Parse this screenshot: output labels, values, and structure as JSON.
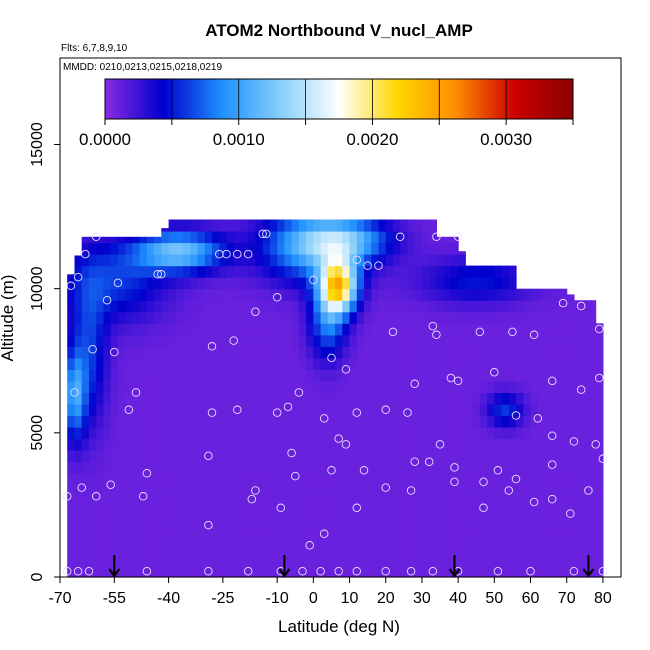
{
  "chart_data": {
    "type": "heatmap",
    "title": "ATOM2 Northbound V_nucl_AMP",
    "flights_label": "Flts: 6,7,8,9,10",
    "dates_label": "MMDD: 0210,0213,0215,0218,0219",
    "xlabel": "Latitude (deg N)",
    "ylabel": "Altitude (m)",
    "xlim": [
      -70,
      85
    ],
    "ylim": [
      0,
      18000
    ],
    "x_ticks": [
      -70,
      -55,
      -40,
      -25,
      -10,
      0,
      10,
      20,
      30,
      40,
      50,
      60,
      70,
      80
    ],
    "x_tick_labels": [
      "-70",
      "-55",
      "-40",
      "-25",
      "-10",
      "0",
      "10",
      "20",
      "30",
      "40",
      "50",
      "60",
      "70",
      "80"
    ],
    "y_ticks": [
      0,
      5000,
      10000,
      15000
    ],
    "y_tick_labels": [
      "0",
      "5000",
      "10000",
      "15000"
    ],
    "colorbar": {
      "range": [
        0,
        0.0035
      ],
      "ticks": [
        0.0,
        0.001,
        0.002,
        0.003
      ],
      "tick_labels": [
        "0.0000",
        "0.0010",
        "0.0020",
        "0.0030"
      ],
      "colors": [
        "#8a2be2",
        "#0000cd",
        "#1e90ff",
        "#87cefa",
        "#ffffff",
        "#ffd700",
        "#ff8c00",
        "#cc0000",
        "#8b0000"
      ]
    },
    "profile_arrows_lat": [
      -55,
      -8,
      39,
      76
    ],
    "grid_lat_range": [
      -68,
      80
    ],
    "hotspots": [
      {
        "lat": 0,
        "alt": 11500,
        "dlat": 14,
        "dalt": 1200,
        "value": 0.001
      },
      {
        "lat": -37,
        "alt": 11300,
        "dlat": 12,
        "dalt": 700,
        "value": 0.0011
      },
      {
        "lat": 7,
        "alt": 10100,
        "dlat": 5,
        "dalt": 900,
        "value": 0.002
      },
      {
        "lat": 4,
        "alt": 8900,
        "dlat": 5,
        "dalt": 1300,
        "value": 0.0007
      },
      {
        "lat": -55,
        "alt": 10300,
        "dlat": 14,
        "dalt": 1400,
        "value": 0.0005
      },
      {
        "lat": 10,
        "alt": 11700,
        "dlat": 12,
        "dalt": 700,
        "value": 0.0007
      },
      {
        "lat": -66,
        "alt": 6300,
        "dlat": 3,
        "dalt": 1500,
        "value": 0.0008
      },
      {
        "lat": -62,
        "alt": 7800,
        "dlat": 5,
        "dalt": 2500,
        "value": 0.0005
      },
      {
        "lat": 53,
        "alt": 5800,
        "dlat": 5,
        "dalt": 600,
        "value": 0.0005
      },
      {
        "lat": 45,
        "alt": 10300,
        "dlat": 15,
        "dalt": 800,
        "value": 0.0004
      }
    ],
    "observations": [
      {
        "lat": -67,
        "alt": 10100
      },
      {
        "lat": -65,
        "alt": 10400
      },
      {
        "lat": -63,
        "alt": 11200
      },
      {
        "lat": -60,
        "alt": 11800
      },
      {
        "lat": -57,
        "alt": 9600
      },
      {
        "lat": -54,
        "alt": 10200
      },
      {
        "lat": -61,
        "alt": 7900
      },
      {
        "lat": -55,
        "alt": 7800
      },
      {
        "lat": -66,
        "alt": 6400
      },
      {
        "lat": -51,
        "alt": 5800
      },
      {
        "lat": -49,
        "alt": 6400
      },
      {
        "lat": -43,
        "alt": 10500
      },
      {
        "lat": -42,
        "alt": 10500
      },
      {
        "lat": -26,
        "alt": 11200
      },
      {
        "lat": -24,
        "alt": 11200
      },
      {
        "lat": -21,
        "alt": 11200
      },
      {
        "lat": -18,
        "alt": 11200
      },
      {
        "lat": -14,
        "alt": 11900
      },
      {
        "lat": -13,
        "alt": 11900
      },
      {
        "lat": -10,
        "alt": 9700
      },
      {
        "lat": -16,
        "alt": 9200
      },
      {
        "lat": -22,
        "alt": 8200
      },
      {
        "lat": -28,
        "alt": 8000
      },
      {
        "lat": -7,
        "alt": 5900
      },
      {
        "lat": -10,
        "alt": 5700
      },
      {
        "lat": -28,
        "alt": 5700
      },
      {
        "lat": -21,
        "alt": 5800
      },
      {
        "lat": 0,
        "alt": 10300
      },
      {
        "lat": 8,
        "alt": 10600
      },
      {
        "lat": 12,
        "alt": 11000
      },
      {
        "lat": 15,
        "alt": 10800
      },
      {
        "lat": 18,
        "alt": 10800
      },
      {
        "lat": 24,
        "alt": 11800
      },
      {
        "lat": 34,
        "alt": 11800
      },
      {
        "lat": 40,
        "alt": 11800
      },
      {
        "lat": 5,
        "alt": 7600
      },
      {
        "lat": 9,
        "alt": 7200
      },
      {
        "lat": -4,
        "alt": 6400
      },
      {
        "lat": 3,
        "alt": 5500
      },
      {
        "lat": 12,
        "alt": 5700
      },
      {
        "lat": 20,
        "alt": 5800
      },
      {
        "lat": 26,
        "alt": 5700
      },
      {
        "lat": 22,
        "alt": 8500
      },
      {
        "lat": 33,
        "alt": 8700
      },
      {
        "lat": 34,
        "alt": 8400
      },
      {
        "lat": 46,
        "alt": 8500
      },
      {
        "lat": 55,
        "alt": 8500
      },
      {
        "lat": 61,
        "alt": 8400
      },
      {
        "lat": 28,
        "alt": 6700
      },
      {
        "lat": 38,
        "alt": 6900
      },
      {
        "lat": 40,
        "alt": 6800
      },
      {
        "lat": 50,
        "alt": 7100
      },
      {
        "lat": 66,
        "alt": 6800
      },
      {
        "lat": 74,
        "alt": 6500
      },
      {
        "lat": 79,
        "alt": 6900
      },
      {
        "lat": 69,
        "alt": 9500
      },
      {
        "lat": 74,
        "alt": 9400
      },
      {
        "lat": 79,
        "alt": 8600
      },
      {
        "lat": 56,
        "alt": 5600
      },
      {
        "lat": 62,
        "alt": 5500
      },
      {
        "lat": 66,
        "alt": 4900
      },
      {
        "lat": 72,
        "alt": 4700
      },
      {
        "lat": 78,
        "alt": 4600
      },
      {
        "lat": 80,
        "alt": 4100
      },
      {
        "lat": 66,
        "alt": 3900
      },
      {
        "lat": 76,
        "alt": 3000
      },
      {
        "lat": 71,
        "alt": 2200
      },
      {
        "lat": 66,
        "alt": 2700
      },
      {
        "lat": 61,
        "alt": 2600
      },
      {
        "lat": 56,
        "alt": 3400
      },
      {
        "lat": 54,
        "alt": 3000
      },
      {
        "lat": 51,
        "alt": 3700
      },
      {
        "lat": 47,
        "alt": 3300
      },
      {
        "lat": 47,
        "alt": 2400
      },
      {
        "lat": 39,
        "alt": 3800
      },
      {
        "lat": 39,
        "alt": 3300
      },
      {
        "lat": 35,
        "alt": 4600
      },
      {
        "lat": 32,
        "alt": 4000
      },
      {
        "lat": 28,
        "alt": 4000
      },
      {
        "lat": 27,
        "alt": 3000
      },
      {
        "lat": 20,
        "alt": 3100
      },
      {
        "lat": 14,
        "alt": 3700
      },
      {
        "lat": 12,
        "alt": 2400
      },
      {
        "lat": 5,
        "alt": 3700
      },
      {
        "lat": 3,
        "alt": 1500
      },
      {
        "lat": -1,
        "alt": 1100
      },
      {
        "lat": -5,
        "alt": 3500
      },
      {
        "lat": -6,
        "alt": 4300
      },
      {
        "lat": 7,
        "alt": 4800
      },
      {
        "lat": 9,
        "alt": 4600
      },
      {
        "lat": -16,
        "alt": 3000
      },
      {
        "lat": -17,
        "alt": 2700
      },
      {
        "lat": -9,
        "alt": 2400
      },
      {
        "lat": -29,
        "alt": 4200
      },
      {
        "lat": -29,
        "alt": 1800
      },
      {
        "lat": -46,
        "alt": 3600
      },
      {
        "lat": -47,
        "alt": 2800
      },
      {
        "lat": -56,
        "alt": 3200
      },
      {
        "lat": -64,
        "alt": 3100
      },
      {
        "lat": -60,
        "alt": 2800
      },
      {
        "lat": -68,
        "alt": 2800
      },
      {
        "lat": -68,
        "alt": 200
      },
      {
        "lat": -65,
        "alt": 200
      },
      {
        "lat": -62,
        "alt": 200
      },
      {
        "lat": -46,
        "alt": 200
      },
      {
        "lat": -29,
        "alt": 200
      },
      {
        "lat": -18,
        "alt": 200
      },
      {
        "lat": -9,
        "alt": 200
      },
      {
        "lat": -3,
        "alt": 200
      },
      {
        "lat": 2,
        "alt": 200
      },
      {
        "lat": 7,
        "alt": 200
      },
      {
        "lat": 12,
        "alt": 200
      },
      {
        "lat": 20,
        "alt": 200
      },
      {
        "lat": 27,
        "alt": 200
      },
      {
        "lat": 33,
        "alt": 200
      },
      {
        "lat": 40,
        "alt": 200
      },
      {
        "lat": 51,
        "alt": 200
      },
      {
        "lat": 60,
        "alt": 200
      },
      {
        "lat": 72,
        "alt": 200
      },
      {
        "lat": 80,
        "alt": 200
      }
    ]
  }
}
